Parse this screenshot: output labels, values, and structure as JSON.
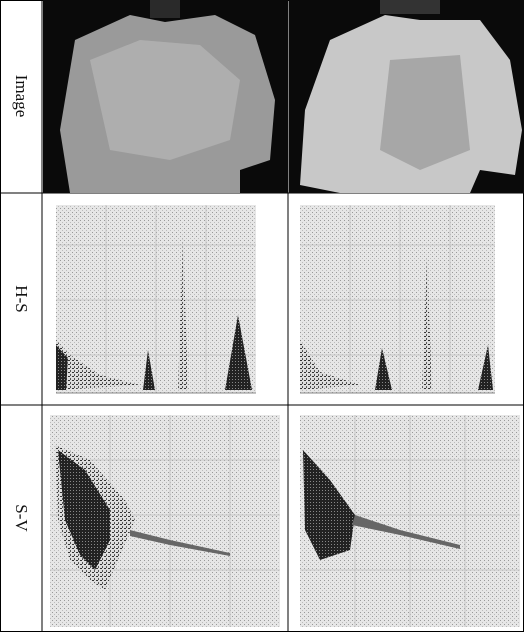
{
  "figure": {
    "rows": [
      {
        "label": "Image"
      },
      {
        "label": "H-S"
      },
      {
        "label": "S-V"
      }
    ]
  }
}
